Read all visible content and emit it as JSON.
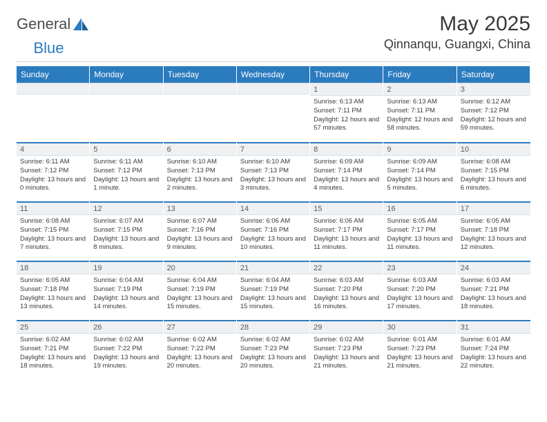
{
  "logo": {
    "text_left": "General",
    "text_right": "Blue"
  },
  "title": "May 2025",
  "location": "Qinnanqu, Guangxi, China",
  "colors": {
    "brand_blue": "#2b7bbf",
    "header_text": "#ffffff",
    "daynum_bg": "#eef0f2",
    "text": "#3a3a3a",
    "rule": "#d0d0d0"
  },
  "dow": [
    "Sunday",
    "Monday",
    "Tuesday",
    "Wednesday",
    "Thursday",
    "Friday",
    "Saturday"
  ],
  "weeks": [
    [
      {
        "n": "",
        "sunrise": "",
        "sunset": "",
        "daylight": ""
      },
      {
        "n": "",
        "sunrise": "",
        "sunset": "",
        "daylight": ""
      },
      {
        "n": "",
        "sunrise": "",
        "sunset": "",
        "daylight": ""
      },
      {
        "n": "",
        "sunrise": "",
        "sunset": "",
        "daylight": ""
      },
      {
        "n": "1",
        "sunrise": "Sunrise: 6:13 AM",
        "sunset": "Sunset: 7:11 PM",
        "daylight": "Daylight: 12 hours and 57 minutes."
      },
      {
        "n": "2",
        "sunrise": "Sunrise: 6:13 AM",
        "sunset": "Sunset: 7:11 PM",
        "daylight": "Daylight: 12 hours and 58 minutes."
      },
      {
        "n": "3",
        "sunrise": "Sunrise: 6:12 AM",
        "sunset": "Sunset: 7:12 PM",
        "daylight": "Daylight: 12 hours and 59 minutes."
      }
    ],
    [
      {
        "n": "4",
        "sunrise": "Sunrise: 6:11 AM",
        "sunset": "Sunset: 7:12 PM",
        "daylight": "Daylight: 13 hours and 0 minutes."
      },
      {
        "n": "5",
        "sunrise": "Sunrise: 6:11 AM",
        "sunset": "Sunset: 7:12 PM",
        "daylight": "Daylight: 13 hours and 1 minute."
      },
      {
        "n": "6",
        "sunrise": "Sunrise: 6:10 AM",
        "sunset": "Sunset: 7:13 PM",
        "daylight": "Daylight: 13 hours and 2 minutes."
      },
      {
        "n": "7",
        "sunrise": "Sunrise: 6:10 AM",
        "sunset": "Sunset: 7:13 PM",
        "daylight": "Daylight: 13 hours and 3 minutes."
      },
      {
        "n": "8",
        "sunrise": "Sunrise: 6:09 AM",
        "sunset": "Sunset: 7:14 PM",
        "daylight": "Daylight: 13 hours and 4 minutes."
      },
      {
        "n": "9",
        "sunrise": "Sunrise: 6:09 AM",
        "sunset": "Sunset: 7:14 PM",
        "daylight": "Daylight: 13 hours and 5 minutes."
      },
      {
        "n": "10",
        "sunrise": "Sunrise: 6:08 AM",
        "sunset": "Sunset: 7:15 PM",
        "daylight": "Daylight: 13 hours and 6 minutes."
      }
    ],
    [
      {
        "n": "11",
        "sunrise": "Sunrise: 6:08 AM",
        "sunset": "Sunset: 7:15 PM",
        "daylight": "Daylight: 13 hours and 7 minutes."
      },
      {
        "n": "12",
        "sunrise": "Sunrise: 6:07 AM",
        "sunset": "Sunset: 7:15 PM",
        "daylight": "Daylight: 13 hours and 8 minutes."
      },
      {
        "n": "13",
        "sunrise": "Sunrise: 6:07 AM",
        "sunset": "Sunset: 7:16 PM",
        "daylight": "Daylight: 13 hours and 9 minutes."
      },
      {
        "n": "14",
        "sunrise": "Sunrise: 6:06 AM",
        "sunset": "Sunset: 7:16 PM",
        "daylight": "Daylight: 13 hours and 10 minutes."
      },
      {
        "n": "15",
        "sunrise": "Sunrise: 6:06 AM",
        "sunset": "Sunset: 7:17 PM",
        "daylight": "Daylight: 13 hours and 11 minutes."
      },
      {
        "n": "16",
        "sunrise": "Sunrise: 6:05 AM",
        "sunset": "Sunset: 7:17 PM",
        "daylight": "Daylight: 13 hours and 11 minutes."
      },
      {
        "n": "17",
        "sunrise": "Sunrise: 6:05 AM",
        "sunset": "Sunset: 7:18 PM",
        "daylight": "Daylight: 13 hours and 12 minutes."
      }
    ],
    [
      {
        "n": "18",
        "sunrise": "Sunrise: 6:05 AM",
        "sunset": "Sunset: 7:18 PM",
        "daylight": "Daylight: 13 hours and 13 minutes."
      },
      {
        "n": "19",
        "sunrise": "Sunrise: 6:04 AM",
        "sunset": "Sunset: 7:19 PM",
        "daylight": "Daylight: 13 hours and 14 minutes."
      },
      {
        "n": "20",
        "sunrise": "Sunrise: 6:04 AM",
        "sunset": "Sunset: 7:19 PM",
        "daylight": "Daylight: 13 hours and 15 minutes."
      },
      {
        "n": "21",
        "sunrise": "Sunrise: 6:04 AM",
        "sunset": "Sunset: 7:19 PM",
        "daylight": "Daylight: 13 hours and 15 minutes."
      },
      {
        "n": "22",
        "sunrise": "Sunrise: 6:03 AM",
        "sunset": "Sunset: 7:20 PM",
        "daylight": "Daylight: 13 hours and 16 minutes."
      },
      {
        "n": "23",
        "sunrise": "Sunrise: 6:03 AM",
        "sunset": "Sunset: 7:20 PM",
        "daylight": "Daylight: 13 hours and 17 minutes."
      },
      {
        "n": "24",
        "sunrise": "Sunrise: 6:03 AM",
        "sunset": "Sunset: 7:21 PM",
        "daylight": "Daylight: 13 hours and 18 minutes."
      }
    ],
    [
      {
        "n": "25",
        "sunrise": "Sunrise: 6:02 AM",
        "sunset": "Sunset: 7:21 PM",
        "daylight": "Daylight: 13 hours and 18 minutes."
      },
      {
        "n": "26",
        "sunrise": "Sunrise: 6:02 AM",
        "sunset": "Sunset: 7:22 PM",
        "daylight": "Daylight: 13 hours and 19 minutes."
      },
      {
        "n": "27",
        "sunrise": "Sunrise: 6:02 AM",
        "sunset": "Sunset: 7:22 PM",
        "daylight": "Daylight: 13 hours and 20 minutes."
      },
      {
        "n": "28",
        "sunrise": "Sunrise: 6:02 AM",
        "sunset": "Sunset: 7:23 PM",
        "daylight": "Daylight: 13 hours and 20 minutes."
      },
      {
        "n": "29",
        "sunrise": "Sunrise: 6:02 AM",
        "sunset": "Sunset: 7:23 PM",
        "daylight": "Daylight: 13 hours and 21 minutes."
      },
      {
        "n": "30",
        "sunrise": "Sunrise: 6:01 AM",
        "sunset": "Sunset: 7:23 PM",
        "daylight": "Daylight: 13 hours and 21 minutes."
      },
      {
        "n": "31",
        "sunrise": "Sunrise: 6:01 AM",
        "sunset": "Sunset: 7:24 PM",
        "daylight": "Daylight: 13 hours and 22 minutes."
      }
    ]
  ]
}
